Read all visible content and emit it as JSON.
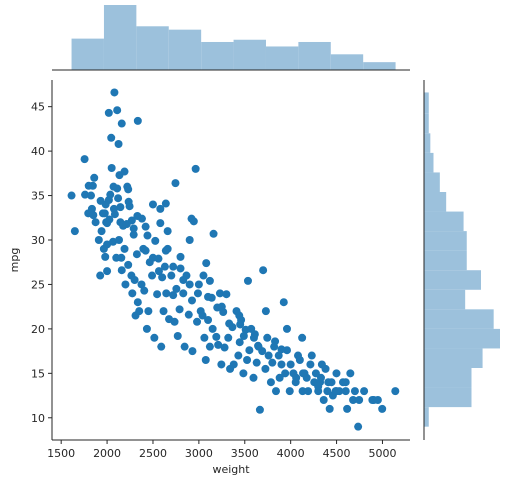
{
  "chart_data": {
    "type": "scatter",
    "title": "",
    "xlabel": "weight",
    "ylabel": "mpg",
    "xlim": [
      1400,
      5300
    ],
    "ylim": [
      7.5,
      48
    ],
    "xticks": [
      1500,
      2000,
      2500,
      3000,
      3500,
      4000,
      4500,
      5000
    ],
    "yticks": [
      10,
      15,
      20,
      25,
      30,
      35,
      40,
      45
    ],
    "grid": false,
    "legend": "none",
    "colors": {
      "scatter": "#1f77b4",
      "histogram": "#9cc1dc"
    },
    "points": [
      [
        1613,
        35
      ],
      [
        1649,
        31
      ],
      [
        1755,
        39.1
      ],
      [
        1760,
        35.1
      ],
      [
        1795,
        33
      ],
      [
        1800,
        36.1
      ],
      [
        1825,
        35
      ],
      [
        1835,
        33.5
      ],
      [
        1845,
        36.1
      ],
      [
        1850,
        32.8
      ],
      [
        1875,
        32
      ],
      [
        1910,
        30
      ],
      [
        1925,
        26
      ],
      [
        1940,
        31
      ],
      [
        1955,
        33
      ],
      [
        1965,
        29
      ],
      [
        1975,
        33
      ],
      [
        1985,
        34
      ],
      [
        1990,
        32
      ],
      [
        2000,
        29.5
      ],
      [
        2000,
        26.5
      ],
      [
        2019,
        44.3
      ],
      [
        2020,
        34.5
      ],
      [
        2025,
        32.3
      ],
      [
        2035,
        35.1
      ],
      [
        2050,
        38.1
      ],
      [
        2065,
        29.8
      ],
      [
        2075,
        33.5
      ],
      [
        2085,
        32.9
      ],
      [
        2100,
        28
      ],
      [
        2110,
        35.8
      ],
      [
        2120,
        34.7
      ],
      [
        2125,
        40.8
      ],
      [
        2130,
        30
      ],
      [
        2145,
        32
      ],
      [
        2155,
        28
      ],
      [
        2160,
        26.6
      ],
      [
        2175,
        31.6
      ],
      [
        2190,
        29
      ],
      [
        2200,
        25
      ],
      [
        2215,
        31.8
      ],
      [
        2220,
        36
      ],
      [
        2230,
        27.2
      ],
      [
        2245,
        33.8
      ],
      [
        2265,
        26
      ],
      [
        2275,
        24
      ],
      [
        2290,
        30.6
      ],
      [
        2300,
        25.5
      ],
      [
        2310,
        21.5
      ],
      [
        2325,
        28.4
      ],
      [
        2335,
        23
      ],
      [
        2350,
        22
      ],
      [
        2375,
        25
      ],
      [
        2395,
        29
      ],
      [
        2405,
        24.3
      ],
      [
        2420,
        31.5
      ],
      [
        2434,
        20
      ],
      [
        2450,
        22
      ],
      [
        2465,
        27.5
      ],
      [
        2490,
        26
      ],
      [
        2500,
        34
      ],
      [
        2515,
        19
      ],
      [
        2525,
        29.9
      ],
      [
        2545,
        23.9
      ],
      [
        2565,
        26.5
      ],
      [
        2580,
        33.5
      ],
      [
        2590,
        18
      ],
      [
        2600,
        25.8
      ],
      [
        2615,
        22
      ],
      [
        2630,
        27
      ],
      [
        2645,
        24
      ],
      [
        2660,
        31
      ],
      [
        2675,
        21.1
      ],
      [
        2700,
        26
      ],
      [
        2720,
        23.8
      ],
      [
        2735,
        20.8
      ],
      [
        2745,
        36.4
      ],
      [
        2755,
        24.5
      ],
      [
        2770,
        19.2
      ],
      [
        2790,
        22.2
      ],
      [
        2800,
        28.1
      ],
      [
        2830,
        24
      ],
      [
        2845,
        18
      ],
      [
        2865,
        26
      ],
      [
        2890,
        21.6
      ],
      [
        2900,
        30
      ],
      [
        2925,
        23.2
      ],
      [
        2930,
        17.5
      ],
      [
        2945,
        32.1
      ],
      [
        2965,
        38
      ],
      [
        2980,
        20.8
      ],
      [
        3000,
        25
      ],
      [
        3020,
        22
      ],
      [
        3040,
        21.5
      ],
      [
        3060,
        19
      ],
      [
        3075,
        16.5
      ],
      [
        3080,
        27.4
      ],
      [
        3100,
        21
      ],
      [
        3120,
        18
      ],
      [
        3140,
        23.5
      ],
      [
        3150,
        20
      ],
      [
        3160,
        30.7
      ],
      [
        3190,
        19.1
      ],
      [
        3210,
        18.2
      ],
      [
        3230,
        24
      ],
      [
        3245,
        16
      ],
      [
        3265,
        21.9
      ],
      [
        3280,
        17.9
      ],
      [
        3300,
        23.9
      ],
      [
        3320,
        19
      ],
      [
        3340,
        15.5
      ],
      [
        3365,
        20.2
      ],
      [
        3380,
        16
      ],
      [
        3410,
        22
      ],
      [
        3430,
        17
      ],
      [
        3445,
        18.5
      ],
      [
        3460,
        21
      ],
      [
        3485,
        15
      ],
      [
        3510,
        19.9
      ],
      [
        3525,
        16.5
      ],
      [
        3535,
        25.4
      ],
      [
        3550,
        17.6
      ],
      [
        3570,
        20
      ],
      [
        3595,
        14.5
      ],
      [
        3610,
        19.4
      ],
      [
        3630,
        16.2
      ],
      [
        3645,
        18.1
      ],
      [
        3665,
        10.9
      ],
      [
        3690,
        17.5
      ],
      [
        3700,
        26.6
      ],
      [
        3725,
        15.5
      ],
      [
        3745,
        19
      ],
      [
        3760,
        17
      ],
      [
        3785,
        14
      ],
      [
        3800,
        16.2
      ],
      [
        3820,
        18
      ],
      [
        3840,
        13
      ],
      [
        3870,
        17
      ],
      [
        3880,
        14.5
      ],
      [
        3900,
        16
      ],
      [
        3925,
        23
      ],
      [
        3940,
        15
      ],
      [
        3960,
        17.6
      ],
      [
        3990,
        13
      ],
      [
        4000,
        16
      ],
      [
        4030,
        15
      ],
      [
        4055,
        14
      ],
      [
        4080,
        17
      ],
      [
        4100,
        16.5
      ],
      [
        4130,
        13
      ],
      [
        4150,
        15
      ],
      [
        4175,
        14.5
      ],
      [
        4190,
        13
      ],
      [
        4215,
        16
      ],
      [
        4230,
        17
      ],
      [
        4257,
        14
      ],
      [
        4275,
        15
      ],
      [
        4300,
        13
      ],
      [
        4320,
        14
      ],
      [
        4340,
        16
      ],
      [
        4360,
        12
      ],
      [
        4380,
        15.5
      ],
      [
        4400,
        13
      ],
      [
        4425,
        11
      ],
      [
        4445,
        14
      ],
      [
        4460,
        12.5
      ],
      [
        4490,
        13
      ],
      [
        4499,
        15
      ],
      [
        4530,
        13
      ],
      [
        4570,
        14
      ],
      [
        4600,
        13
      ],
      [
        4615,
        11
      ],
      [
        4650,
        15
      ],
      [
        4680,
        12
      ],
      [
        4700,
        13
      ],
      [
        4735,
        9
      ],
      [
        4746,
        12
      ],
      [
        4800,
        13
      ],
      [
        4890,
        12
      ],
      [
        4906,
        12
      ],
      [
        4950,
        12
      ],
      [
        4997,
        11
      ],
      [
        5140,
        13
      ],
      [
        2000,
        31.9
      ],
      [
        2070,
        36
      ],
      [
        2145,
        33.7
      ],
      [
        2230,
        35.7
      ],
      [
        2290,
        31.3
      ],
      [
        2380,
        32.4
      ],
      [
        2420,
        28.8
      ],
      [
        2500,
        28
      ],
      [
        2560,
        27.9
      ],
      [
        2640,
        28.8
      ],
      [
        2720,
        27
      ],
      [
        2800,
        26.8
      ],
      [
        2900,
        25
      ],
      [
        2990,
        24
      ],
      [
        3100,
        23.6
      ],
      [
        3200,
        22.4
      ],
      [
        3330,
        20.6
      ],
      [
        3450,
        20.5
      ],
      [
        3600,
        19
      ],
      [
        3830,
        18.6
      ],
      [
        4060,
        14.5
      ],
      [
        4300,
        13.5
      ],
      [
        4500,
        13
      ],
      [
        1980,
        28.1
      ],
      [
        2270,
        32.2
      ],
      [
        2440,
        30.5
      ],
      [
        2660,
        29
      ],
      [
        2830,
        25.5
      ],
      [
        3050,
        26
      ],
      [
        3250,
        22.5
      ],
      [
        3490,
        19.2
      ],
      [
        3650,
        18
      ],
      [
        3900,
        17.7
      ],
      [
        4135,
        15
      ],
      [
        4410,
        14
      ],
      [
        2110,
        44.6
      ],
      [
        2160,
        43.1
      ],
      [
        2335,
        43.4
      ],
      [
        2080,
        46.6
      ],
      [
        2045,
        41.5
      ],
      [
        2135,
        37.3
      ],
      [
        2190,
        37.7
      ],
      [
        1860,
        37
      ],
      [
        1930,
        34.4
      ],
      [
        2235,
        34.3
      ],
      [
        2330,
        32.7
      ],
      [
        2580,
        31.9
      ],
      [
        2640,
        34.1
      ],
      [
        2920,
        32.4
      ],
      [
        3120,
        25.4
      ],
      [
        3440,
        21.5
      ],
      [
        3730,
        22
      ],
      [
        3960,
        20
      ],
      [
        4125,
        19
      ],
      [
        4330,
        14.5
      ],
      [
        4600,
        14
      ]
    ],
    "x_histogram": [
      {
        "bin": [
          1613,
          1966
        ],
        "count": 28
      },
      {
        "bin": [
          1966,
          2319
        ],
        "count": 58
      },
      {
        "bin": [
          2319,
          2672
        ],
        "count": 39
      },
      {
        "bin": [
          2672,
          3025
        ],
        "count": 36
      },
      {
        "bin": [
          3025,
          3378
        ],
        "count": 25
      },
      {
        "bin": [
          3378,
          3731
        ],
        "count": 27
      },
      {
        "bin": [
          3731,
          4084
        ],
        "count": 21
      },
      {
        "bin": [
          4084,
          4437
        ],
        "count": 25
      },
      {
        "bin": [
          4437,
          4790
        ],
        "count": 14
      },
      {
        "bin": [
          4790,
          5143
        ],
        "count": 7
      }
    ],
    "y_histogram": [
      {
        "bin": [
          9,
          11.2
        ],
        "count": 3
      },
      {
        "bin": [
          11.2,
          13.4
        ],
        "count": 30
      },
      {
        "bin": [
          13.4,
          15.6
        ],
        "count": 30
      },
      {
        "bin": [
          15.6,
          17.8
        ],
        "count": 37
      },
      {
        "bin": [
          17.8,
          20
        ],
        "count": 48
      },
      {
        "bin": [
          20,
          22.2
        ],
        "count": 44
      },
      {
        "bin": [
          22.2,
          24.4
        ],
        "count": 26
      },
      {
        "bin": [
          24.4,
          26.6
        ],
        "count": 36
      },
      {
        "bin": [
          26.6,
          28.8
        ],
        "count": 27
      },
      {
        "bin": [
          28.8,
          31
        ],
        "count": 27
      },
      {
        "bin": [
          31,
          33.2
        ],
        "count": 25
      },
      {
        "bin": [
          33.2,
          35.4
        ],
        "count": 14
      },
      {
        "bin": [
          35.4,
          37.6
        ],
        "count": 10
      },
      {
        "bin": [
          37.6,
          39.8
        ],
        "count": 6
      },
      {
        "bin": [
          39.8,
          42
        ],
        "count": 4
      },
      {
        "bin": [
          42,
          44.2
        ],
        "count": 3
      },
      {
        "bin": [
          44.2,
          46.6
        ],
        "count": 3
      }
    ]
  }
}
